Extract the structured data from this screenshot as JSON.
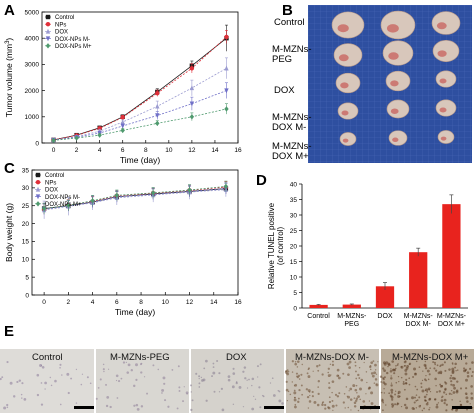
{
  "panels": {
    "a": "A",
    "b": "B",
    "c": "C",
    "d": "D",
    "e": "E"
  },
  "chart_data": [
    {
      "type": "line",
      "panel": "A",
      "xlabel": "Time (day)",
      "ylabel_prefix": "Tumor volume (mm",
      "ylabel_sup": "3",
      "ylabel_suffix": ")",
      "xlim": [
        -1,
        16
      ],
      "ylim": [
        0,
        5000
      ],
      "xticks": [
        "0",
        "2",
        "4",
        "6",
        "8",
        "10",
        "12",
        "14",
        "16"
      ],
      "yticks": [
        "0",
        "1000",
        "2000",
        "3000",
        "4000",
        "5000"
      ],
      "x": [
        0,
        2,
        4,
        6,
        9,
        12,
        15
      ],
      "legend_position": "top-left",
      "series": [
        {
          "name": "Control",
          "color": "#1a1a1a",
          "values": [
            120,
            300,
            580,
            1000,
            1950,
            2950,
            4000
          ],
          "errors": [
            20,
            40,
            60,
            80,
            120,
            180,
            500
          ]
        },
        {
          "name": "NPs",
          "color": "#e0303a",
          "values": [
            120,
            290,
            560,
            980,
            1900,
            2850,
            4050
          ],
          "errors": [
            20,
            40,
            60,
            80,
            120,
            180,
            250
          ]
        },
        {
          "name": "DOX",
          "color": "#9b9bd0",
          "values": [
            110,
            240,
            450,
            800,
            1400,
            2100,
            2850
          ],
          "errors": [
            20,
            40,
            60,
            80,
            200,
            300,
            400
          ]
        },
        {
          "name": "DOX-NPs M-",
          "color": "#7070c8",
          "values": [
            110,
            220,
            380,
            650,
            1050,
            1500,
            2000
          ],
          "errors": [
            20,
            40,
            60,
            80,
            150,
            250,
            300
          ]
        },
        {
          "name": "DOX-NPs M+",
          "color": "#4f9a6e",
          "values": [
            100,
            190,
            300,
            480,
            750,
            1000,
            1300
          ],
          "errors": [
            20,
            30,
            50,
            70,
            100,
            150,
            200
          ]
        }
      ]
    },
    {
      "type": "line",
      "panel": "C",
      "xlabel": "Time (day)",
      "ylabel": "Body weight (g)",
      "xlim": [
        -1,
        16
      ],
      "ylim": [
        0,
        35
      ],
      "xticks": [
        "0",
        "2",
        "4",
        "6",
        "8",
        "10",
        "12",
        "14",
        "16"
      ],
      "yticks": [
        "0",
        "5",
        "10",
        "15",
        "20",
        "25",
        "30",
        "35"
      ],
      "x": [
        0,
        2,
        4,
        6,
        9,
        12,
        15
      ],
      "legend_position": "top-left",
      "series": [
        {
          "name": "Control",
          "color": "#1a1a1a",
          "values": [
            24.2,
            25.0,
            26.0,
            27.5,
            28.3,
            29.0,
            29.8
          ],
          "errors": [
            1.5,
            1.5,
            1.5,
            1.5,
            1.5,
            1.5,
            1.5
          ]
        },
        {
          "name": "NPs",
          "color": "#e0303a",
          "values": [
            24.0,
            25.2,
            26.2,
            27.8,
            28.5,
            29.3,
            30.2
          ],
          "errors": [
            1.5,
            1.5,
            1.5,
            1.5,
            1.5,
            1.5,
            1.5
          ]
        },
        {
          "name": "DOX",
          "color": "#9b9bd0",
          "values": [
            23.8,
            24.8,
            25.8,
            27.2,
            28.0,
            28.8,
            29.5
          ],
          "errors": [
            2.5,
            2.5,
            2.0,
            2.0,
            2.0,
            2.0,
            2.0
          ]
        },
        {
          "name": "DOX-NPs M-",
          "color": "#7070c8",
          "values": [
            24.0,
            25.0,
            26.0,
            27.5,
            28.2,
            29.0,
            29.8
          ],
          "errors": [
            1.5,
            1.5,
            1.5,
            1.5,
            1.5,
            1.5,
            1.5
          ]
        },
        {
          "name": "DOX-NPs M+",
          "color": "#4f9a6e",
          "values": [
            24.2,
            25.1,
            26.4,
            27.9,
            28.6,
            29.4,
            30.4
          ],
          "errors": [
            1.5,
            1.5,
            1.5,
            1.5,
            1.5,
            1.5,
            1.5
          ]
        }
      ]
    },
    {
      "type": "bar",
      "panel": "D",
      "ylabel_line1": "Relative TUNEL positive",
      "ylabel_line2": "(of control)",
      "ylim": [
        0,
        40
      ],
      "yticks": [
        "0",
        "5",
        "10",
        "15",
        "20",
        "25",
        "30",
        "35",
        "40"
      ],
      "bar_color": "#e8231e",
      "categories": [
        {
          "line1": "Control",
          "line2": ""
        },
        {
          "line1": "M-MZNs-",
          "line2": "PEG"
        },
        {
          "line1": "DOX",
          "line2": ""
        },
        {
          "line1": "M-MZNs-",
          "line2": "DOX M-"
        },
        {
          "line1": "M-MZNs-",
          "line2": "DOX M+"
        }
      ],
      "values": [
        1.0,
        1.1,
        7.0,
        18.0,
        33.5
      ],
      "errors": [
        0.15,
        0.2,
        1.2,
        1.3,
        3.0
      ]
    }
  ],
  "photo_b": {
    "background_color": "#2e4fa0",
    "rows": [
      {
        "line1": "Control",
        "line2": ""
      },
      {
        "line1": "M-MZNs-",
        "line2": "PEG"
      },
      {
        "line1": "DOX",
        "line2": ""
      },
      {
        "line1": "M-MZNs-",
        "line2": "DOX M-"
      },
      {
        "line1": "M-MZNs-",
        "line2": "DOX M+"
      }
    ]
  },
  "tissue_e": {
    "labels": [
      "Control",
      "M-MZNs-PEG",
      "DOX",
      "M-MZNs-DOX M-",
      "M-MZNs-DOX M+"
    ]
  }
}
